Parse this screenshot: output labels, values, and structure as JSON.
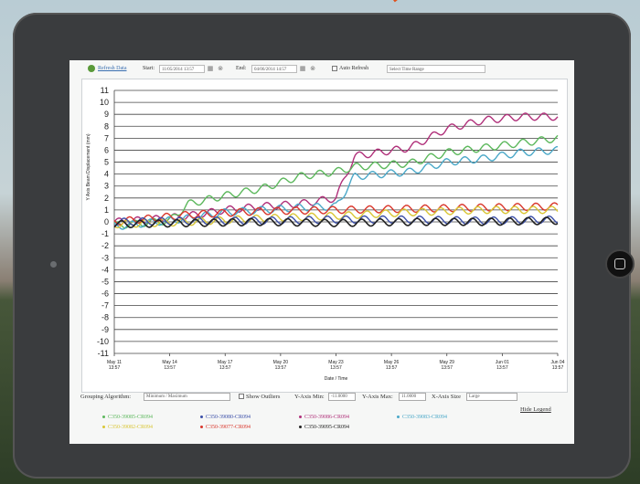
{
  "toolbar": {
    "refresh_label": "Refresh Data",
    "start_label": "Start:",
    "start_value": "11/05/2014 13:57",
    "end_label": "End:",
    "end_value": "04/06/2014 14:57",
    "auto_refresh_label": "Auto Refresh",
    "time_range_placeholder": "Select Time Range"
  },
  "controls": {
    "grouping_label": "Grouping Algorithm:",
    "grouping_value": "Minimum / Maximum",
    "show_outliers_label": "Show Outliers",
    "y_axis_min_label": "Y-Axis Min:",
    "y_axis_min_value": "-11.0000",
    "y_axis_max_label": "Y-Axis Max:",
    "y_axis_max_value": "11.0000",
    "x_axis_size_label": "X-Axis Size",
    "x_axis_size_value": "Large",
    "hide_legend_label": "Hide Legend"
  },
  "legend": [
    {
      "label": "C350-39085-CR094",
      "color": "#5cb85c"
    },
    {
      "label": "C350-39080-CR094",
      "color": "#3b4fa8"
    },
    {
      "label": "C350-39086-CR094",
      "color": "#b0307a"
    },
    {
      "label": "C350-39083-CR094",
      "color": "#4aa8c8"
    },
    {
      "label": "C350-39082-CR094",
      "color": "#d9c635"
    },
    {
      "label": "C350-39077-CR094",
      "color": "#d9362b"
    },
    {
      "label": "C350-39095-CR094",
      "color": "#222222"
    }
  ],
  "chart_data": {
    "type": "line",
    "xlabel": "Date / Time",
    "ylabel": "Y Axis Beam Displacement (mm)",
    "ylim": [
      -11,
      11
    ],
    "x_ticks": [
      [
        "May 11",
        "13:57"
      ],
      [
        "May 14",
        "13:57"
      ],
      [
        "May 17",
        "13:57"
      ],
      [
        "May 20",
        "13:57"
      ],
      [
        "May 23",
        "13:57"
      ],
      [
        "May 26",
        "13:57"
      ],
      [
        "May 29",
        "13:57"
      ],
      [
        "Jun 01",
        "13:57"
      ],
      [
        "Jun 04",
        "13:57"
      ]
    ],
    "x_days": [
      0,
      3,
      6,
      9,
      12,
      15,
      18,
      21,
      24
    ],
    "y_ticks": [
      11,
      10,
      9,
      8,
      7,
      6,
      5,
      4,
      3,
      2,
      1,
      0,
      -1,
      -2,
      -3,
      -4,
      -5,
      -6,
      -7,
      -8,
      -9,
      -10,
      -11
    ],
    "grid": true,
    "series": [
      {
        "name": "C350-39086-CR094",
        "color": "#b0307a",
        "x": [
          0,
          2,
          4,
          6,
          8,
          10,
          12,
          13,
          16,
          18,
          20,
          22,
          24
        ],
        "y": [
          0,
          0.2,
          0.5,
          1.0,
          1.3,
          1.5,
          2.0,
          5.5,
          6.2,
          7.8,
          8.5,
          8.8,
          8.8
        ]
      },
      {
        "name": "C350-39085-CR094",
        "color": "#5cb85c",
        "x": [
          0,
          3,
          4,
          6,
          8,
          10,
          12,
          13,
          16,
          18,
          20,
          22,
          24
        ],
        "y": [
          -0.3,
          0.1,
          1.5,
          2.2,
          2.8,
          3.8,
          4.2,
          4.6,
          4.9,
          5.8,
          6.2,
          6.6,
          7.0
        ]
      },
      {
        "name": "C350-39083-CR094",
        "color": "#4aa8c8",
        "x": [
          0,
          4,
          6,
          8,
          10,
          12,
          13,
          16,
          18,
          20,
          22,
          24
        ],
        "y": [
          -0.4,
          0.3,
          0.8,
          1.0,
          1.2,
          1.3,
          3.8,
          4.2,
          5.0,
          5.3,
          5.8,
          6.0
        ]
      },
      {
        "name": "C350-39077-CR094",
        "color": "#d9362b",
        "x": [
          0,
          4,
          8,
          12,
          16,
          20,
          24
        ],
        "y": [
          0,
          0.6,
          0.9,
          1.0,
          1.1,
          1.2,
          1.3
        ]
      },
      {
        "name": "C350-39082-CR094",
        "color": "#d9c635",
        "x": [
          0,
          4,
          8,
          12,
          16,
          20,
          24
        ],
        "y": [
          -0.2,
          0.0,
          0.3,
          0.5,
          0.8,
          1.0,
          1.0
        ]
      },
      {
        "name": "C350-39080-CR094",
        "color": "#3b4fa8",
        "x": [
          0,
          4,
          8,
          12,
          16,
          20,
          24
        ],
        "y": [
          0,
          0.1,
          0.1,
          0.2,
          0.2,
          0.1,
          0.2
        ]
      },
      {
        "name": "C350-39095-CR094",
        "color": "#222222",
        "x": [
          0,
          4,
          8,
          12,
          16,
          20,
          24
        ],
        "y": [
          -0.2,
          -0.1,
          0.0,
          -0.1,
          0.0,
          0.0,
          0.1
        ]
      }
    ]
  }
}
